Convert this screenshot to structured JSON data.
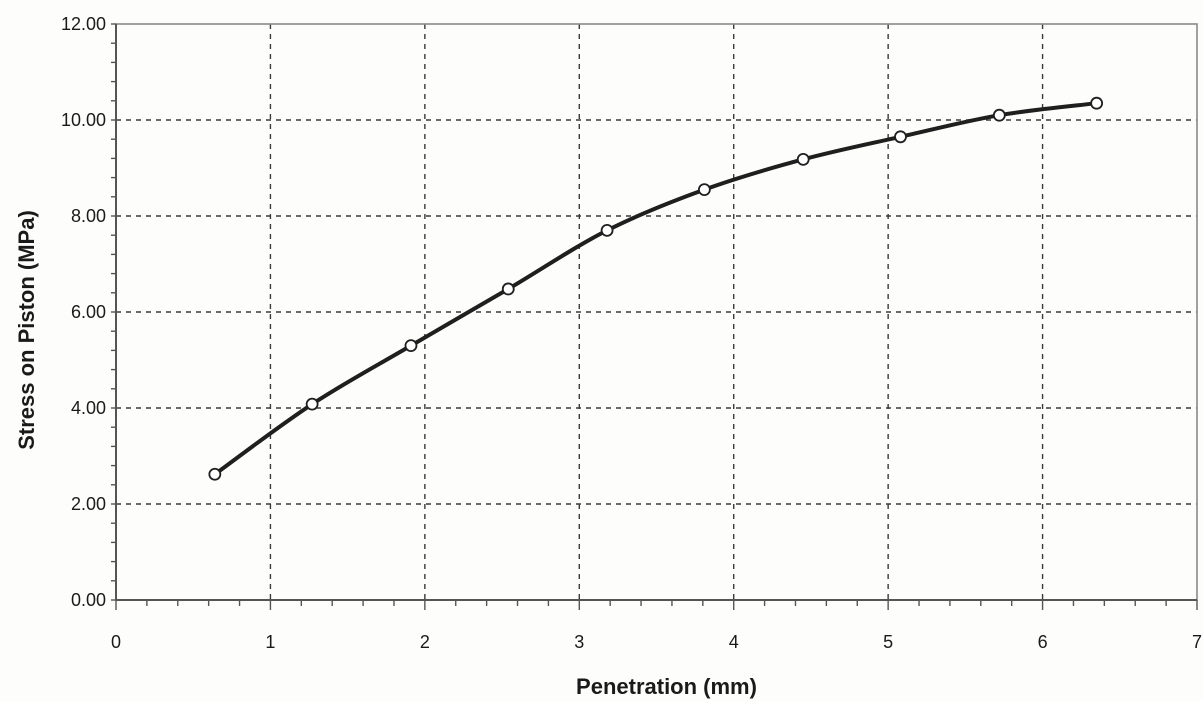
{
  "chart_data": {
    "type": "line",
    "title": "",
    "xlabel": "Penetration (mm)",
    "ylabel": "Stress on Piston (MPa)",
    "xlim": [
      0,
      7
    ],
    "ylim": [
      0,
      12
    ],
    "x_ticks": [
      {
        "value": 0,
        "label": "0"
      },
      {
        "value": 1,
        "label": "1"
      },
      {
        "value": 2,
        "label": "2"
      },
      {
        "value": 3,
        "label": "3"
      },
      {
        "value": 4,
        "label": "4"
      },
      {
        "value": 5,
        "label": "5"
      },
      {
        "value": 6,
        "label": "6"
      },
      {
        "value": 7,
        "label": "7"
      }
    ],
    "y_ticks": [
      {
        "value": 0,
        "label": "0.00"
      },
      {
        "value": 2,
        "label": "2.00"
      },
      {
        "value": 4,
        "label": "4.00"
      },
      {
        "value": 6,
        "label": "6.00"
      },
      {
        "value": 8,
        "label": "8.00"
      },
      {
        "value": 10,
        "label": "10.00"
      },
      {
        "value": 12,
        "label": "12.00"
      }
    ],
    "grid": true,
    "legend": "none",
    "series": [
      {
        "marker": "open-circle",
        "color": "#1f1f1f",
        "x": [
          0.64,
          1.27,
          1.91,
          2.54,
          3.18,
          3.81,
          4.45,
          5.08,
          5.72,
          6.35
        ],
        "y": [
          2.62,
          4.08,
          5.3,
          6.48,
          7.7,
          8.55,
          9.18,
          9.65,
          10.1,
          10.35
        ]
      }
    ]
  }
}
